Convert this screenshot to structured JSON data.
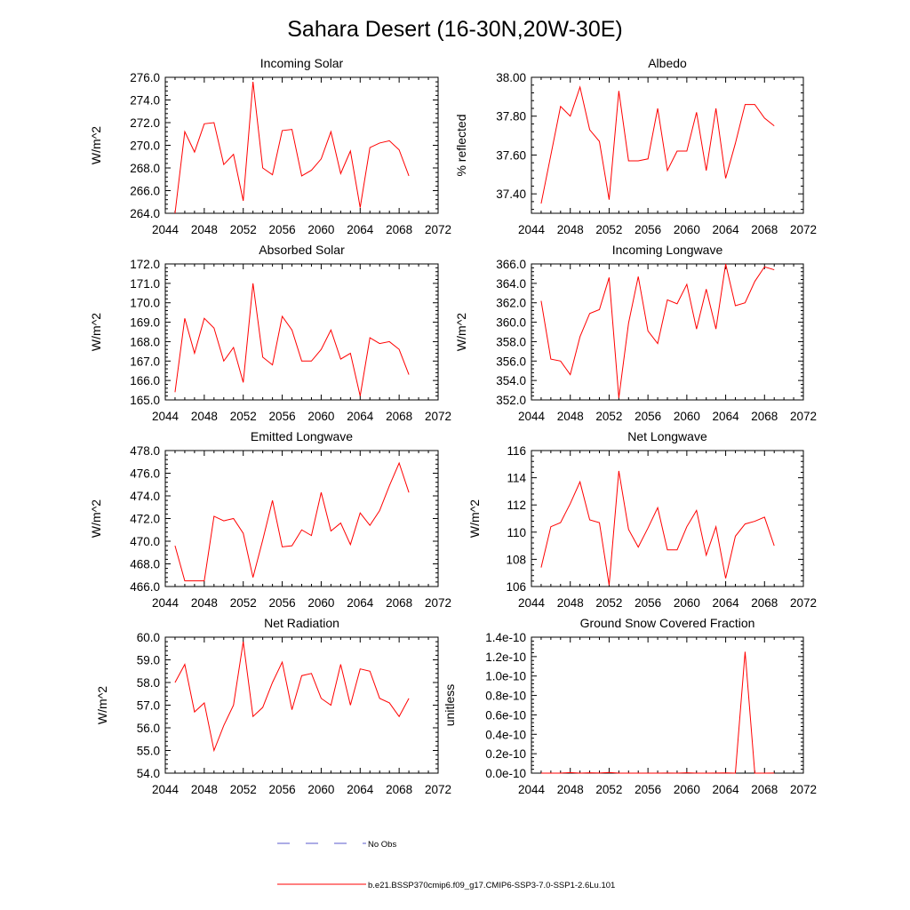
{
  "title": "Sahara Desert (16-30N,20W-30E)",
  "legend": {
    "obs_label": "No Obs",
    "obs_color": "#5a5acd",
    "model_label": "b.e21.BSSP370cmip6.f09_g17.CMIP6-SSP3-7.0-SSP1-2.6Lu.101",
    "model_color": "#ff0000"
  },
  "chart_data": [
    {
      "type": "line",
      "title": "Incoming Solar",
      "ylabel": "W/m^2",
      "xlim": [
        2044,
        2072
      ],
      "xticks": [
        2044,
        2048,
        2052,
        2056,
        2060,
        2064,
        2068,
        2072
      ],
      "ylim": [
        264.0,
        276.0
      ],
      "yticks": [
        "264.0",
        "266.0",
        "268.0",
        "270.0",
        "272.0",
        "274.0",
        "276.0"
      ],
      "x": [
        2045,
        2046,
        2047,
        2048,
        2049,
        2050,
        2051,
        2052,
        2053,
        2054,
        2055,
        2056,
        2057,
        2058,
        2059,
        2060,
        2061,
        2062,
        2063,
        2064,
        2065,
        2066,
        2067,
        2068,
        2069
      ],
      "y": [
        264.0,
        271.2,
        269.4,
        271.9,
        272.0,
        268.3,
        269.2,
        265.1,
        275.6,
        268.0,
        267.4,
        271.3,
        271.4,
        267.3,
        267.8,
        268.8,
        271.2,
        267.5,
        269.5,
        264.5,
        269.8,
        270.2,
        270.4,
        269.6,
        267.3
      ]
    },
    {
      "type": "line",
      "title": "Albedo",
      "ylabel": "% reflected",
      "xlim": [
        2044,
        2072
      ],
      "xticks": [
        2044,
        2048,
        2052,
        2056,
        2060,
        2064,
        2068,
        2072
      ],
      "ylim": [
        37.3,
        38.0
      ],
      "yticks": [
        "37.40",
        "37.60",
        "37.80",
        "38.00"
      ],
      "ytick_values": [
        37.4,
        37.6,
        37.8,
        38.0
      ],
      "x": [
        2045,
        2046,
        2047,
        2048,
        2049,
        2050,
        2051,
        2052,
        2053,
        2054,
        2055,
        2056,
        2057,
        2058,
        2059,
        2060,
        2061,
        2062,
        2063,
        2064,
        2065,
        2066,
        2067,
        2068,
        2069
      ],
      "y": [
        37.35,
        37.6,
        37.85,
        37.8,
        37.95,
        37.73,
        37.67,
        37.37,
        37.93,
        37.57,
        37.57,
        37.58,
        37.84,
        37.52,
        37.62,
        37.62,
        37.82,
        37.52,
        37.84,
        37.48,
        37.66,
        37.86,
        37.86,
        37.79,
        37.75
      ]
    },
    {
      "type": "line",
      "title": "Absorbed Solar",
      "ylabel": "W/m^2",
      "xlim": [
        2044,
        2072
      ],
      "xticks": [
        2044,
        2048,
        2052,
        2056,
        2060,
        2064,
        2068,
        2072
      ],
      "ylim": [
        165.0,
        172.0
      ],
      "yticks": [
        "165.0",
        "166.0",
        "167.0",
        "168.0",
        "169.0",
        "170.0",
        "171.0",
        "172.0"
      ],
      "x": [
        2045,
        2046,
        2047,
        2048,
        2049,
        2050,
        2051,
        2052,
        2053,
        2054,
        2055,
        2056,
        2057,
        2058,
        2059,
        2060,
        2061,
        2062,
        2063,
        2064,
        2065,
        2066,
        2067,
        2068,
        2069
      ],
      "y": [
        165.4,
        169.2,
        167.4,
        169.2,
        168.7,
        167.0,
        167.7,
        165.9,
        171.0,
        167.2,
        166.8,
        169.3,
        168.6,
        167.0,
        167.0,
        167.6,
        168.6,
        167.1,
        167.4,
        165.2,
        168.2,
        167.9,
        168.0,
        167.6,
        166.3
      ]
    },
    {
      "type": "line",
      "title": "Incoming Longwave",
      "ylabel": "W/m^2",
      "xlim": [
        2044,
        2072
      ],
      "xticks": [
        2044,
        2048,
        2052,
        2056,
        2060,
        2064,
        2068,
        2072
      ],
      "ylim": [
        352.0,
        366.0
      ],
      "yticks": [
        "352.0",
        "354.0",
        "356.0",
        "358.0",
        "360.0",
        "362.0",
        "364.0",
        "366.0"
      ],
      "x": [
        2045,
        2046,
        2047,
        2048,
        2049,
        2050,
        2051,
        2052,
        2053,
        2054,
        2055,
        2056,
        2057,
        2058,
        2059,
        2060,
        2061,
        2062,
        2063,
        2064,
        2065,
        2066,
        2067,
        2068,
        2069
      ],
      "y": [
        362.2,
        356.2,
        356.0,
        354.6,
        358.5,
        360.9,
        361.3,
        364.6,
        352.2,
        359.9,
        364.7,
        359.1,
        357.8,
        362.3,
        361.9,
        363.9,
        359.3,
        363.4,
        359.3,
        366.0,
        361.7,
        362.0,
        364.2,
        365.7,
        365.4
      ]
    },
    {
      "type": "line",
      "title": "Emitted Longwave",
      "ylabel": "W/m^2",
      "xlim": [
        2044,
        2072
      ],
      "xticks": [
        2044,
        2048,
        2052,
        2056,
        2060,
        2064,
        2068,
        2072
      ],
      "ylim": [
        466.0,
        478.0
      ],
      "yticks": [
        "466.0",
        "468.0",
        "470.0",
        "472.0",
        "474.0",
        "476.0",
        "478.0"
      ],
      "x": [
        2045,
        2046,
        2047,
        2048,
        2049,
        2050,
        2051,
        2052,
        2053,
        2054,
        2055,
        2056,
        2057,
        2058,
        2059,
        2060,
        2061,
        2062,
        2063,
        2064,
        2065,
        2066,
        2067,
        2068,
        2069
      ],
      "y": [
        469.6,
        466.5,
        466.5,
        466.5,
        472.2,
        471.8,
        472.0,
        470.7,
        466.8,
        470.1,
        473.6,
        469.5,
        469.6,
        471.0,
        470.5,
        474.3,
        470.9,
        471.6,
        469.7,
        472.5,
        471.4,
        472.7,
        474.9,
        476.9,
        474.3
      ]
    },
    {
      "type": "line",
      "title": "Net Longwave",
      "ylabel": "W/m^2",
      "xlim": [
        2044,
        2072
      ],
      "xticks": [
        2044,
        2048,
        2052,
        2056,
        2060,
        2064,
        2068,
        2072
      ],
      "ylim": [
        106,
        116
      ],
      "yticks": [
        "106",
        "108",
        "110",
        "112",
        "114",
        "116"
      ],
      "x": [
        2045,
        2046,
        2047,
        2048,
        2049,
        2050,
        2051,
        2052,
        2053,
        2054,
        2055,
        2056,
        2057,
        2058,
        2059,
        2060,
        2061,
        2062,
        2063,
        2064,
        2065,
        2066,
        2067,
        2068,
        2069
      ],
      "y": [
        107.4,
        110.4,
        110.7,
        112.1,
        113.7,
        110.9,
        110.7,
        106.1,
        114.5,
        110.2,
        108.9,
        110.3,
        111.8,
        108.7,
        108.7,
        110.4,
        111.6,
        108.3,
        110.4,
        106.6,
        109.7,
        110.6,
        110.8,
        111.1,
        109.0
      ]
    },
    {
      "type": "line",
      "title": "Net Radiation",
      "ylabel": "W/m^2",
      "xlim": [
        2044,
        2072
      ],
      "xticks": [
        2044,
        2048,
        2052,
        2056,
        2060,
        2064,
        2068,
        2072
      ],
      "ylim": [
        54.0,
        60.0
      ],
      "yticks": [
        "54.0",
        "55.0",
        "56.0",
        "57.0",
        "58.0",
        "59.0",
        "60.0"
      ],
      "x": [
        2045,
        2046,
        2047,
        2048,
        2049,
        2050,
        2051,
        2052,
        2053,
        2054,
        2055,
        2056,
        2057,
        2058,
        2059,
        2060,
        2061,
        2062,
        2063,
        2064,
        2065,
        2066,
        2067,
        2068,
        2069
      ],
      "y": [
        58.0,
        58.8,
        56.7,
        57.1,
        55.0,
        56.1,
        57.0,
        59.8,
        56.5,
        56.9,
        58.0,
        58.9,
        56.8,
        58.3,
        58.4,
        57.3,
        57.0,
        58.8,
        57.0,
        58.6,
        58.5,
        57.3,
        57.1,
        56.5,
        57.3
      ]
    },
    {
      "type": "line",
      "title": "Ground Snow Covered Fraction",
      "ylabel": "unitless",
      "xlim": [
        2044,
        2072
      ],
      "xticks": [
        2044,
        2048,
        2052,
        2056,
        2060,
        2064,
        2068,
        2072
      ],
      "ylim": [
        0.0,
        1.4e-10
      ],
      "yticks": [
        "0.0e-10",
        "0.2e-10",
        "0.4e-10",
        "0.6e-10",
        "0.8e-10",
        "1.0e-10",
        "1.2e-10",
        "1.4e-10"
      ],
      "ytick_values": [
        0.0,
        2e-11,
        4e-11,
        6e-11,
        8e-11,
        1e-10,
        1.2e-10,
        1.4e-10
      ],
      "x": [
        2045,
        2046,
        2047,
        2048,
        2049,
        2050,
        2051,
        2052,
        2053,
        2054,
        2055,
        2056,
        2057,
        2058,
        2059,
        2060,
        2061,
        2062,
        2063,
        2064,
        2065,
        2066,
        2067,
        2068,
        2069
      ],
      "y": [
        0.0,
        0.0,
        0.0,
        6e-13,
        0.0,
        3e-13,
        1e-13,
        7e-13,
        0.0,
        0.0,
        0.0,
        0.0,
        0.0,
        1e-13,
        0.0,
        3e-13,
        0.0,
        0.0,
        1e-13,
        2e-13,
        0.0,
        1.25e-10,
        0.0,
        0.0,
        1e-13
      ]
    }
  ]
}
